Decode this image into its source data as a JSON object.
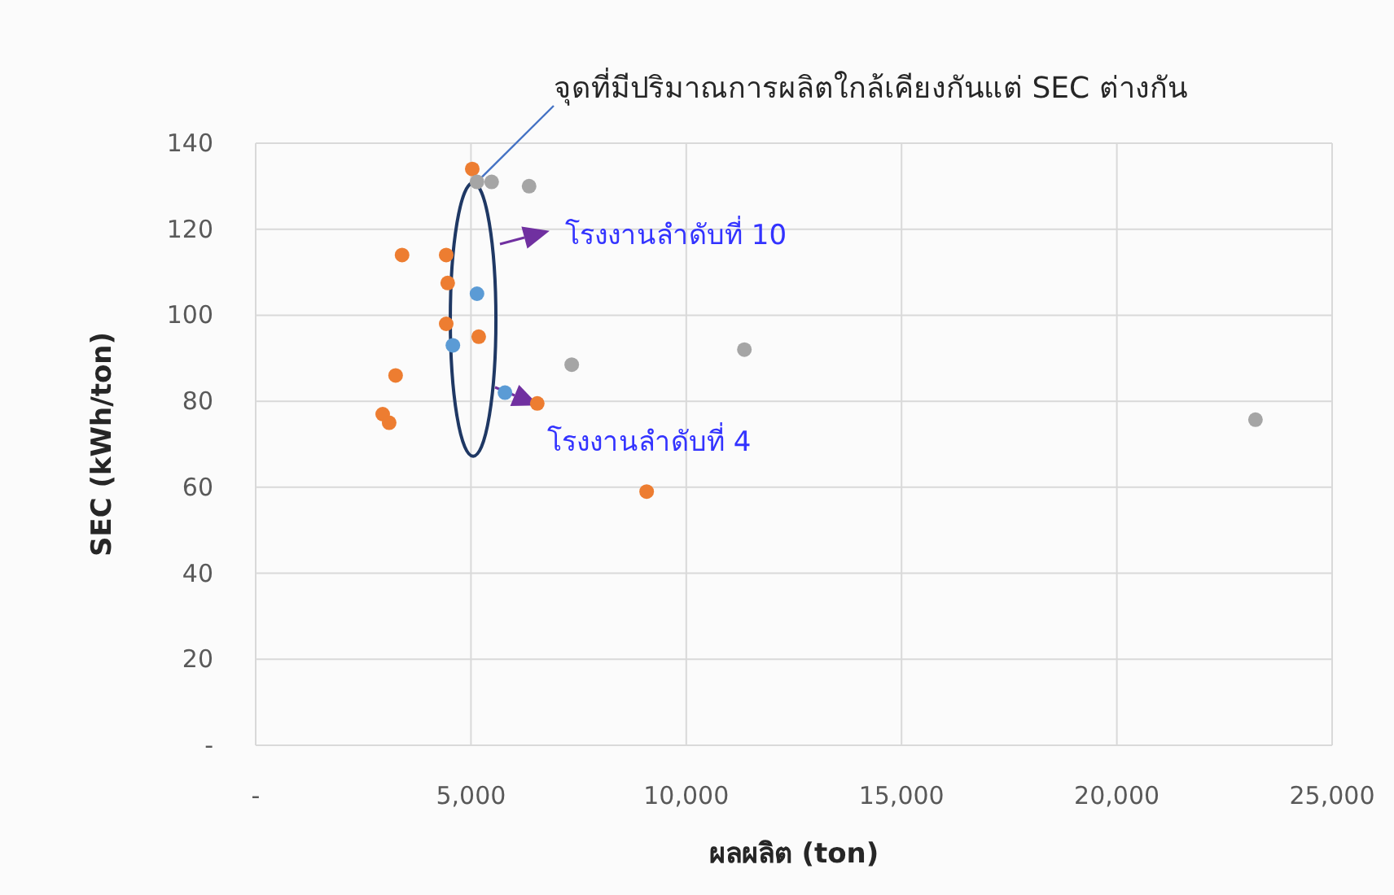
{
  "chart_data": {
    "type": "scatter",
    "xlabel": "ผลผลิต (ton)",
    "ylabel": "SEC (kWh/ton)",
    "xlim": [
      0,
      25000
    ],
    "ylim": [
      0,
      140
    ],
    "xticks": [
      {
        "value": 0,
        "label": "-"
      },
      {
        "value": 5000,
        "label": "5,000"
      },
      {
        "value": 10000,
        "label": "10,000"
      },
      {
        "value": 15000,
        "label": "15,000"
      },
      {
        "value": 20000,
        "label": "20,000"
      },
      {
        "value": 25000,
        "label": "25,000"
      }
    ],
    "yticks": [
      {
        "value": 0,
        "label": "-"
      },
      20,
      40,
      60,
      80,
      100,
      120,
      140
    ],
    "grid": true,
    "marker": "circle",
    "annotations": [
      {
        "text": "จุดที่มีปริมาณการผลิตใกล้เคียงกันแต่ SEC ต่างกัน",
        "x": 5140,
        "y": 131
      },
      "โรงงานลำดับที่ 10",
      "โรงงานลำดับที่ 4"
    ],
    "series": [
      {
        "color": "#5b9bd5",
        "x": [
          5140,
          4580,
          5790
        ],
        "values": [
          105,
          93,
          82
        ]
      },
      {
        "color": "#ed7d31",
        "x": [
          5030,
          3400,
          4425,
          4460,
          4425,
          5180,
          3250,
          2950,
          3100,
          6540,
          9080
        ],
        "values": [
          134,
          114,
          114,
          107.5,
          98,
          95,
          86,
          77,
          75,
          79.5,
          59
        ]
      },
      {
        "color": "#a5a5a5",
        "x": [
          5140,
          5480,
          6350,
          7340,
          11350,
          23220
        ],
        "values": [
          131,
          131,
          130,
          88.5,
          92,
          75.7
        ]
      }
    ]
  }
}
